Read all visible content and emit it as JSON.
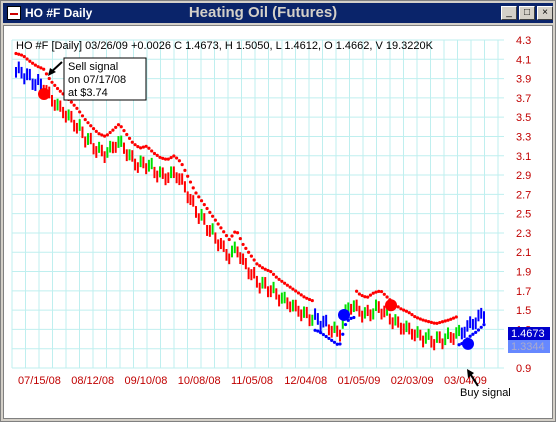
{
  "window": {
    "title": "HO #F Daily"
  },
  "titlebar_controls": [
    "_",
    "□",
    "×"
  ],
  "chart_title": "Heating Oil (Futures)",
  "info_line": "HO #F [Daily] 03/26/09 +0.0026 C 1.4673, H 1.5050, L 1.4612, O 1.4662, V 19.3220K",
  "annotations": {
    "sell": [
      "Sell signal",
      "on 07/17/08",
      "at $3.74"
    ],
    "buy": "Buy signal"
  },
  "colors": {
    "up": "#00e000",
    "down": "#ff0000",
    "blue": "#0000ff",
    "grid": "#bfefef",
    "axis_text": "#c00000"
  },
  "price_tags": {
    "close": "1.4673",
    "stop": "1.3344"
  },
  "chart_data": {
    "type": "line",
    "ylim": [
      0.9,
      4.3
    ],
    "y_ticks": [
      "4.3",
      "4.1",
      "3.9",
      "3.7",
      "3.5",
      "3.3",
      "3.1",
      "2.9",
      "2.7",
      "2.5",
      "2.3",
      "2.1",
      "1.9",
      "1.7",
      "1.5",
      "1.3",
      "1.1",
      "0.9"
    ],
    "x_ticks": [
      "07/15/08",
      "08/12/08",
      "09/10/08",
      "10/08/08",
      "11/05/08",
      "12/04/08",
      "01/05/09",
      "02/03/09",
      "03/04/09"
    ],
    "series": [
      {
        "values": [
          3.98,
          3.96,
          3.9,
          3.85,
          3.82,
          3.7,
          3.62,
          3.55,
          3.48,
          3.4,
          3.3,
          3.22,
          3.15,
          3.12,
          3.18,
          3.25,
          3.15,
          3.05,
          3.0,
          3.02,
          2.95,
          2.9,
          2.88,
          2.92,
          2.85,
          2.7,
          2.55,
          2.45,
          2.35,
          2.25,
          2.15,
          2.05,
          2.15,
          2.0,
          1.9,
          1.8,
          1.75,
          1.72,
          1.65,
          1.6,
          1.55,
          1.5,
          1.45,
          1.42,
          1.4,
          1.35,
          1.3,
          1.25,
          1.5,
          1.55,
          1.48,
          1.45,
          1.5,
          1.52,
          1.45,
          1.38,
          1.33,
          1.3,
          1.25,
          1.22,
          1.2,
          1.18,
          1.2,
          1.22,
          1.25,
          1.28,
          1.35,
          1.4,
          1.47
        ]
      }
    ],
    "signals": [
      {
        "type": "sell",
        "date": "07/17/08",
        "price": 3.74
      },
      {
        "type": "buy",
        "date": "01/05/09",
        "price": 1.45
      },
      {
        "type": "sell",
        "date": "02/03/09",
        "price": 1.55
      },
      {
        "type": "buy",
        "date": "03/04/09",
        "price": 1.15
      }
    ]
  }
}
